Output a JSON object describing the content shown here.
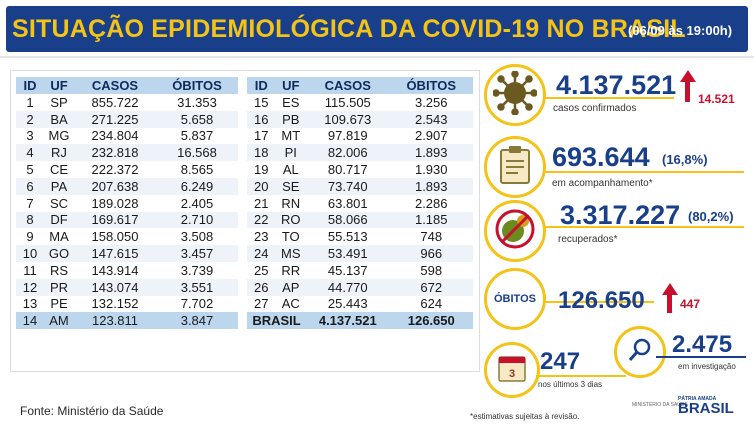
{
  "header": {
    "title": "SITUAÇÃO EPIDEMIOLÓGICA DA COVID-19 NO BRASIL",
    "date": "(06/09 às 19:00h)"
  },
  "table": {
    "headers": [
      "ID",
      "UF",
      "CASOS",
      "ÓBITOS"
    ],
    "left_rows": [
      [
        "1",
        "SP",
        "855.722",
        "31.353"
      ],
      [
        "2",
        "BA",
        "271.225",
        "5.658"
      ],
      [
        "3",
        "MG",
        "234.804",
        "5.837"
      ],
      [
        "4",
        "RJ",
        "232.818",
        "16.568"
      ],
      [
        "5",
        "CE",
        "222.372",
        "8.565"
      ],
      [
        "6",
        "PA",
        "207.638",
        "6.249"
      ],
      [
        "7",
        "SC",
        "189.028",
        "2.405"
      ],
      [
        "8",
        "DF",
        "169.617",
        "2.710"
      ],
      [
        "9",
        "MA",
        "158.050",
        "3.508"
      ],
      [
        "10",
        "GO",
        "147.615",
        "3.457"
      ],
      [
        "11",
        "RS",
        "143.914",
        "3.739"
      ],
      [
        "12",
        "PR",
        "143.074",
        "3.551"
      ],
      [
        "13",
        "PE",
        "132.152",
        "7.702"
      ],
      [
        "14",
        "AM",
        "123.811",
        "3.847"
      ]
    ],
    "right_rows": [
      [
        "15",
        "ES",
        "115.505",
        "3.256"
      ],
      [
        "16",
        "PB",
        "109.673",
        "2.543"
      ],
      [
        "17",
        "MT",
        "97.819",
        "2.907"
      ],
      [
        "18",
        "PI",
        "82.006",
        "1.893"
      ],
      [
        "19",
        "AL",
        "80.717",
        "1.930"
      ],
      [
        "20",
        "SE",
        "73.740",
        "1.893"
      ],
      [
        "21",
        "RN",
        "63.801",
        "2.286"
      ],
      [
        "22",
        "RO",
        "58.066",
        "1.185"
      ],
      [
        "23",
        "TO",
        "55.513",
        "748"
      ],
      [
        "24",
        "MS",
        "53.491",
        "966"
      ],
      [
        "25",
        "RR",
        "45.137",
        "598"
      ],
      [
        "26",
        "AP",
        "44.770",
        "672"
      ],
      [
        "27",
        "AC",
        "25.443",
        "624"
      ]
    ],
    "total": {
      "label": "BRASIL",
      "cases": "4.137.521",
      "deaths": "126.650"
    }
  },
  "source": "Fonte: Ministério da Saúde",
  "stats": {
    "confirmed": {
      "value": "4.137.521",
      "label": "casos confirmados",
      "delta": "14.521"
    },
    "monitoring": {
      "value": "693.644",
      "pct": "(16,8%)",
      "label": "em acompanhamento*"
    },
    "recovered": {
      "value": "3.317.227",
      "pct": "(80,2%)",
      "label": "recuperados*"
    },
    "deaths": {
      "ring_label": "ÓBITOS",
      "value": "126.650",
      "delta": "447"
    },
    "last3days": {
      "value": "247",
      "label": "nos últimos 3 dias",
      "badge": "3"
    },
    "investigation": {
      "value": "2.475",
      "label": "em investigação"
    }
  },
  "footer": {
    "note": "*estimativas sujeitas à revisão.",
    "ministry": "MINISTÉRIO DA SAÚDE",
    "logo_small": "PÁTRIA AMADA",
    "logo_big": "BRASIL"
  },
  "colors": {
    "navy": "#1a3f8a",
    "yellow": "#f3c317",
    "red": "#c8102e",
    "table_header": "#bcd6ee"
  },
  "icons": [
    "virus-icon",
    "clipboard-icon",
    "recovered-virus-icon",
    "calendar-icon",
    "magnifier-icon"
  ]
}
